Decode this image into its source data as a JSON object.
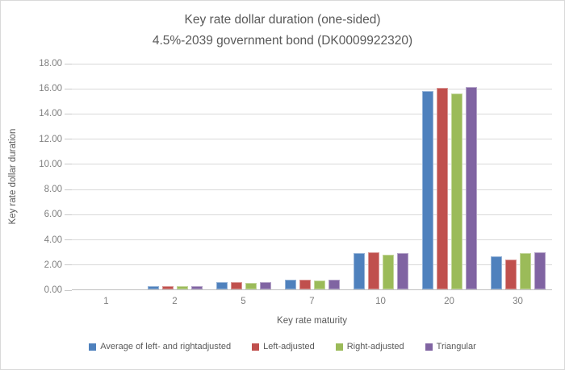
{
  "title": {
    "line1": "Key rate dollar duration (one-sided)",
    "line2": "4.5%-2039 government bond (DK0009922320)"
  },
  "colors": {
    "frame_border": "#d9d9d9",
    "background": "#ffffff",
    "gridline": "#d9d9d9",
    "axis_line": "#bfbfbf",
    "title_text": "#595959",
    "tick_text": "#7f7f7f"
  },
  "chart_data": {
    "type": "bar",
    "title": "Key rate dollar duration (one-sided) 4.5%-2039 government bond (DK0009922320)",
    "xlabel": "Key rate maturity",
    "ylabel": "Key rate dollar duration",
    "categories": [
      "1",
      "2",
      "5",
      "7",
      "10",
      "20",
      "30"
    ],
    "series": [
      {
        "name": "Average of left- and rightadjusted",
        "color": "#4F81BD",
        "border": "#95B3D7",
        "values": [
          0.02,
          0.27,
          0.55,
          0.74,
          2.88,
          15.78,
          2.65
        ]
      },
      {
        "name": "Left-adjusted",
        "color": "#C0504D",
        "border": "#D99694",
        "values": [
          0.02,
          0.25,
          0.55,
          0.8,
          2.93,
          16.0,
          2.4
        ]
      },
      {
        "name": "Right-adjusted",
        "color": "#9BBB59",
        "border": "#C3D69B",
        "values": [
          0.02,
          0.25,
          0.53,
          0.7,
          2.77,
          15.6,
          2.9
        ]
      },
      {
        "name": "Triangular",
        "color": "#8064A2",
        "border": "#B3A2C7",
        "values": [
          0.02,
          0.26,
          0.55,
          0.76,
          2.89,
          16.1,
          2.95
        ]
      }
    ],
    "ylim": [
      0,
      18
    ],
    "ytick_step": 2,
    "yticks": [
      "0.00",
      "2.00",
      "4.00",
      "6.00",
      "8.00",
      "10.00",
      "12.00",
      "14.00",
      "16.00",
      "18.00"
    ],
    "grid": true,
    "legend_position": "bottom"
  }
}
